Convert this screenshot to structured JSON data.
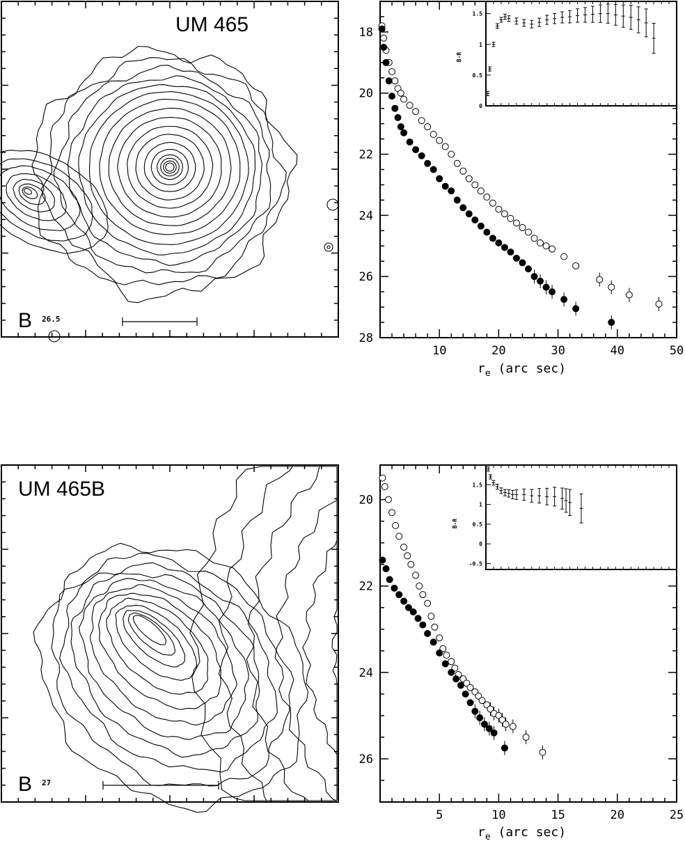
{
  "panels": [
    {
      "contour": {
        "title": "UM 465",
        "band_letter": "B",
        "band_level": "26.5"
      },
      "profile": {
        "xlim": [
          0,
          50
        ],
        "ylim": [
          28,
          17
        ],
        "xticks": [
          "10",
          "20",
          "30",
          "40",
          "50"
        ],
        "yticks": [
          "18",
          "20",
          "22",
          "24",
          "26",
          "28"
        ],
        "xlabel": "r",
        "xlabel_sub": "e",
        "xlabel_rest": " (arc sec)",
        "inset": {
          "xlim": [
            0,
            50
          ],
          "ylim": [
            0,
            1.7
          ],
          "yticks": [
            "0",
            "0.5",
            "1",
            "1.5"
          ],
          "ylabel": "B-R"
        }
      }
    },
    {
      "contour": {
        "title": "UM 465B",
        "band_letter": "B",
        "band_level": "27"
      },
      "profile": {
        "xlim": [
          0,
          25
        ],
        "ylim": [
          27,
          19.2
        ],
        "xticks": [
          "5",
          "10",
          "15",
          "20",
          "25"
        ],
        "yticks": [
          "20",
          "22",
          "24",
          "26"
        ],
        "xlabel": "r",
        "xlabel_sub": "e",
        "xlabel_rest": " (arc sec)",
        "inset": {
          "xlim": [
            0,
            25
          ],
          "ylim": [
            -0.65,
            2
          ],
          "yticks": [
            "-0.5",
            "0",
            "0.5",
            "1",
            "1.5"
          ],
          "ylabel": "B-R"
        }
      }
    }
  ],
  "chart_data": [
    {
      "type": "scatter",
      "title": "",
      "xlabel": "re (arc sec)",
      "ylabel": "",
      "xlim": [
        0,
        50
      ],
      "ylim": [
        28,
        17
      ],
      "series": [
        {
          "name": "",
          "marker": "open",
          "x": [
            0.3,
            0.6,
            1,
            1.5,
            2,
            2.5,
            3,
            3.5,
            4,
            5,
            6,
            7,
            8,
            9,
            10,
            11,
            12,
            13,
            14,
            15,
            16,
            17,
            18,
            19,
            20,
            21,
            22,
            23,
            24,
            25,
            26,
            27,
            28,
            29,
            31,
            33,
            37,
            39,
            42,
            47
          ],
          "y": [
            17.8,
            18.2,
            18.6,
            19.0,
            19.3,
            19.6,
            19.85,
            20.0,
            20.2,
            20.4,
            20.6,
            20.9,
            21.1,
            21.35,
            21.55,
            21.75,
            22.0,
            22.3,
            22.55,
            22.8,
            23.0,
            23.2,
            23.4,
            23.6,
            23.8,
            23.95,
            24.1,
            24.25,
            24.4,
            24.55,
            24.75,
            24.9,
            25.0,
            25.1,
            25.35,
            25.65,
            26.1,
            26.35,
            26.6,
            26.9
          ]
        },
        {
          "name": "",
          "marker": "filled",
          "x": [
            0.3,
            0.6,
            1,
            1.5,
            2,
            2.5,
            3,
            3.5,
            4,
            5,
            6,
            7,
            8,
            9,
            10,
            11,
            12,
            13,
            14,
            15,
            16,
            17,
            18,
            19,
            20,
            21,
            22,
            23,
            24,
            25,
            26,
            27,
            28,
            29,
            31,
            33,
            39
          ],
          "y": [
            17.9,
            18.5,
            19.0,
            19.6,
            20.1,
            20.5,
            20.8,
            21.1,
            21.3,
            21.6,
            21.85,
            22.05,
            22.3,
            22.5,
            22.8,
            23.05,
            23.2,
            23.5,
            23.75,
            23.95,
            24.15,
            24.35,
            24.55,
            24.75,
            24.9,
            25.05,
            25.2,
            25.4,
            25.55,
            25.75,
            26.0,
            26.15,
            26.35,
            26.5,
            26.75,
            27.05,
            27.5
          ]
        }
      ],
      "inset": {
        "ylabel": "B-R",
        "xlim": [
          0,
          50
        ],
        "ylim": [
          0,
          1.7
        ],
        "x": [
          0.5,
          1,
          2,
          3,
          4,
          5,
          6,
          8,
          10,
          12,
          14,
          16,
          18,
          20,
          22,
          24,
          26,
          28,
          30,
          32,
          34,
          36,
          38,
          40,
          42,
          44
        ],
        "y": [
          0.2,
          0.6,
          1.0,
          1.3,
          1.4,
          1.45,
          1.42,
          1.38,
          1.35,
          1.33,
          1.36,
          1.4,
          1.42,
          1.44,
          1.45,
          1.47,
          1.48,
          1.49,
          1.5,
          1.5,
          1.48,
          1.46,
          1.44,
          1.4,
          1.35,
          1.1
        ]
      }
    },
    {
      "type": "scatter",
      "title": "",
      "xlabel": "re (arc sec)",
      "ylabel": "",
      "xlim": [
        0,
        25
      ],
      "ylim": [
        27,
        19.2
      ],
      "series": [
        {
          "name": "",
          "marker": "open",
          "x": [
            0.2,
            0.4,
            0.7,
            1,
            1.3,
            1.6,
            2,
            2.3,
            2.6,
            3,
            3.3,
            3.6,
            4,
            4.3,
            4.6,
            5,
            5.3,
            5.6,
            6,
            6.3,
            6.6,
            7,
            7.3,
            7.6,
            8,
            8.3,
            8.6,
            9,
            9.3,
            9.6,
            10,
            10.3,
            10.6,
            11.2,
            12.3,
            13.7
          ],
          "y": [
            19.5,
            19.7,
            20.0,
            20.3,
            20.6,
            20.85,
            21.1,
            21.3,
            21.5,
            21.75,
            22.0,
            22.2,
            22.4,
            22.7,
            22.95,
            23.2,
            23.45,
            23.6,
            23.75,
            23.9,
            24.05,
            24.15,
            24.25,
            24.35,
            24.45,
            24.55,
            24.65,
            24.75,
            24.85,
            24.95,
            25.0,
            25.1,
            25.2,
            25.25,
            25.5,
            25.85
          ]
        },
        {
          "name": "",
          "marker": "filled",
          "x": [
            0.2,
            0.5,
            0.8,
            1.2,
            1.6,
            2,
            2.4,
            2.8,
            3.2,
            3.6,
            4,
            4.5,
            5,
            5.5,
            6,
            6.4,
            6.8,
            7.2,
            7.6,
            8,
            8.4,
            8.8,
            9.2,
            9.6,
            10.5
          ],
          "y": [
            21.4,
            21.6,
            21.85,
            22.05,
            22.2,
            22.35,
            22.5,
            22.6,
            22.75,
            22.9,
            23.1,
            23.3,
            23.55,
            23.8,
            24.0,
            24.15,
            24.3,
            24.5,
            24.7,
            24.9,
            25.05,
            25.2,
            25.3,
            25.4,
            25.75
          ]
        }
      ],
      "inset": {
        "ylabel": "B-R",
        "xlim": [
          0,
          25
        ],
        "ylim": [
          -0.65,
          2
        ],
        "x": [
          0.3,
          0.6,
          1,
          1.5,
          2,
          2.5,
          3,
          3.5,
          4,
          5,
          6,
          7,
          8,
          9,
          10,
          10.5,
          11,
          12.5
        ],
        "y": [
          1.9,
          1.7,
          1.55,
          1.45,
          1.35,
          1.3,
          1.28,
          1.25,
          1.25,
          1.25,
          1.22,
          1.22,
          1.2,
          1.2,
          1.15,
          1.1,
          1.05,
          0.9
        ]
      }
    }
  ]
}
